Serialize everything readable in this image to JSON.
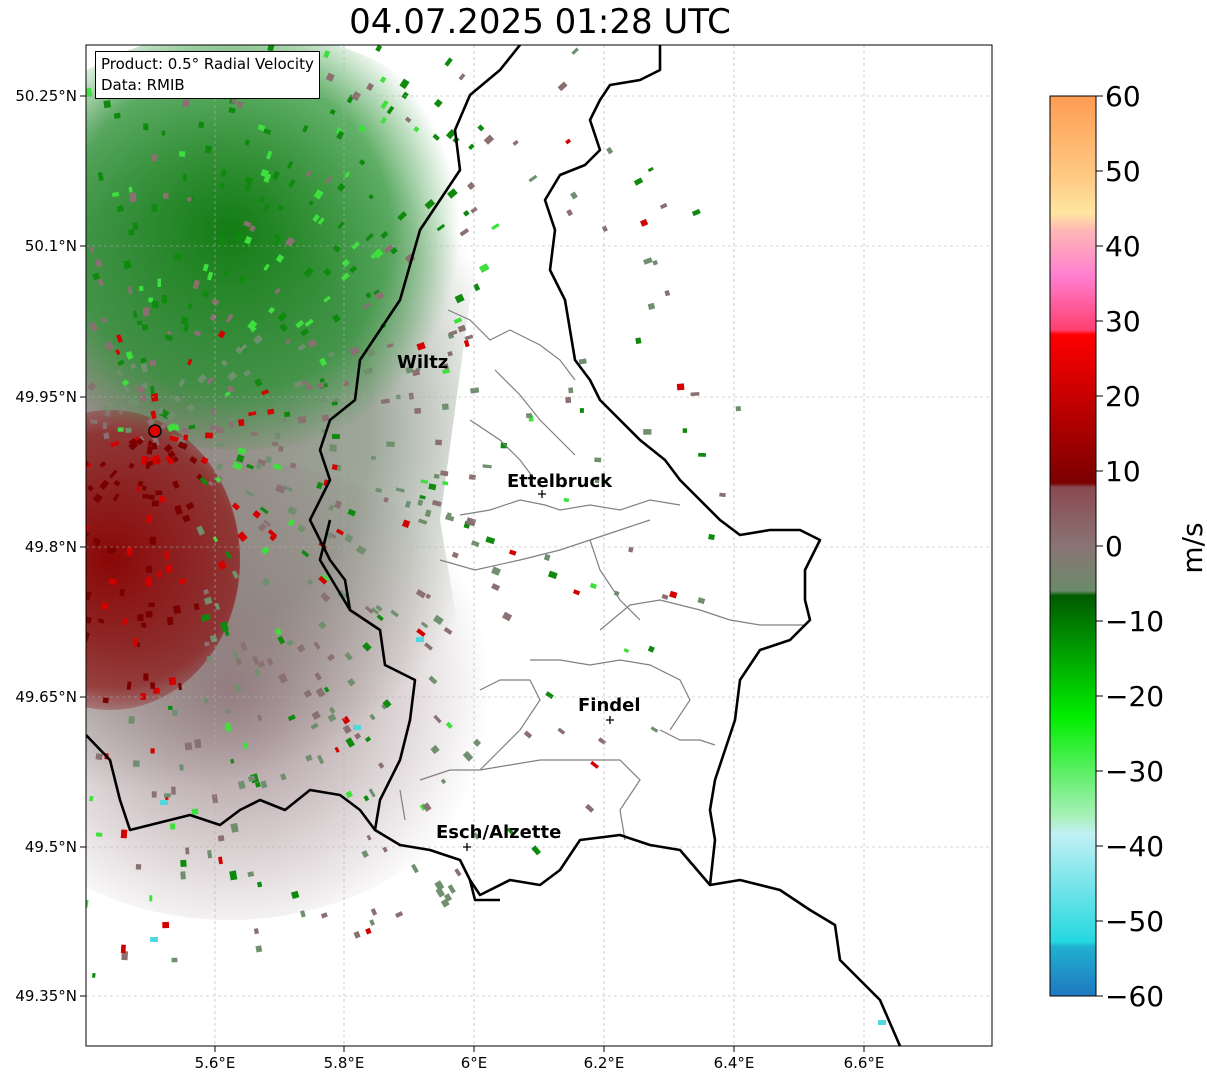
{
  "title": "04.07.2025 01:28 UTC",
  "info": {
    "product": "Product: 0.5° Radial Velocity",
    "data": "Data: RMIB"
  },
  "lat_ticks": [
    "50.25°N",
    "50.1°N",
    "49.95°N",
    "49.8°N",
    "49.65°N",
    "49.5°N",
    "49.35°N"
  ],
  "lon_ticks": [
    "5.6°E",
    "5.8°E",
    "6°E",
    "6.2°E",
    "6.4°E",
    "6.6°E"
  ],
  "cities": {
    "wiltz": "Wiltz",
    "ettelbruck": "Ettelbruck",
    "findel": "Findel",
    "esch": "Esch/Alzette"
  },
  "colorbar": {
    "unit": "m/s",
    "ticks": [
      "60",
      "50",
      "40",
      "30",
      "20",
      "10",
      "0",
      "−10",
      "−20",
      "−30",
      "−40",
      "−50",
      "−60"
    ],
    "range": [
      -60,
      60
    ]
  },
  "colors": {
    "receding_red": "#d40000",
    "dark_red": "#7a0000",
    "neutral_brown": "#8a7070",
    "neutral_green": "#6f8f6f",
    "approach_green": "#0f8a0f",
    "light_green": "#3ee03e",
    "cyan": "#4fd8e0"
  }
}
